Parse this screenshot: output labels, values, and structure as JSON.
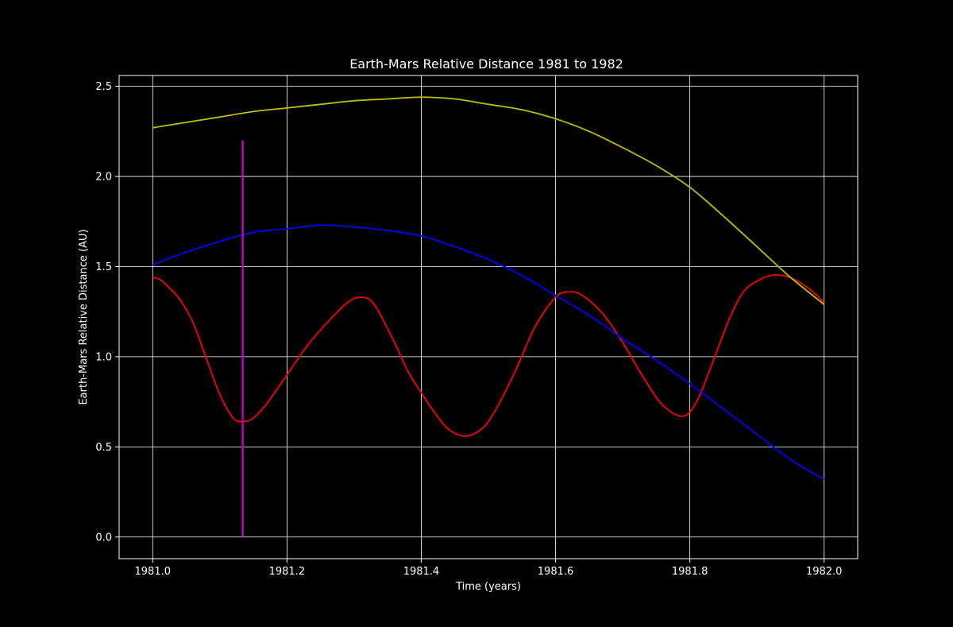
{
  "colors": {
    "background": "#000000",
    "foreground": "#ffffff",
    "grid": "#ffffff",
    "red_series": "#ff0000",
    "blue_series": "#0000ff",
    "yellow_series": "#bfbf00",
    "marker": "#bf00bf"
  },
  "chart_data": {
    "type": "line",
    "title": "Earth-Mars Relative Distance 1981 to 1982",
    "xlabel": "Time (years)",
    "ylabel": "Earth-Mars Relative Distance (AU)",
    "xlim": [
      1980.95,
      1982.05
    ],
    "ylim": [
      -0.12,
      2.56
    ],
    "grid": true,
    "x_ticks": [
      1981.0,
      1981.2,
      1981.4,
      1981.6,
      1981.8,
      1982.0
    ],
    "x_tick_labels": [
      "1981.0",
      "1981.2",
      "1981.4",
      "1981.6",
      "1981.8",
      "1982.0"
    ],
    "y_ticks": [
      0.0,
      0.5,
      1.0,
      1.5,
      2.0,
      2.5
    ],
    "y_tick_labels": [
      "0.0",
      "0.5",
      "1.0",
      "1.5",
      "2.0",
      "2.5"
    ],
    "series": [
      {
        "color": "#ff0000",
        "x": [
          1981.0,
          1981.01,
          1981.02,
          1981.04,
          1981.06,
          1981.08,
          1981.1,
          1981.12,
          1981.135,
          1981.15,
          1981.17,
          1981.2,
          1981.23,
          1981.26,
          1981.29,
          1981.31,
          1981.33,
          1981.36,
          1981.38,
          1981.4,
          1981.42,
          1981.44,
          1981.465,
          1981.49,
          1981.51,
          1981.54,
          1981.57,
          1981.6,
          1981.62,
          1981.64,
          1981.67,
          1981.7,
          1981.73,
          1981.76,
          1981.79,
          1981.81,
          1981.83,
          1981.86,
          1981.88,
          1981.9,
          1981.92,
          1981.94,
          1981.96,
          1981.98,
          1982.0
        ],
        "y": [
          1.44,
          1.43,
          1.4,
          1.32,
          1.19,
          0.99,
          0.79,
          0.66,
          0.64,
          0.66,
          0.74,
          0.9,
          1.06,
          1.19,
          1.3,
          1.33,
          1.29,
          1.08,
          0.92,
          0.8,
          0.69,
          0.6,
          0.56,
          0.6,
          0.7,
          0.92,
          1.17,
          1.33,
          1.36,
          1.34,
          1.24,
          1.08,
          0.89,
          0.73,
          0.67,
          0.75,
          0.93,
          1.22,
          1.36,
          1.42,
          1.45,
          1.45,
          1.42,
          1.37,
          1.3
        ]
      },
      {
        "color": "#0000ff",
        "x": [
          1981.0,
          1981.05,
          1981.1,
          1981.15,
          1981.2,
          1981.25,
          1981.3,
          1981.35,
          1981.4,
          1981.45,
          1981.5,
          1981.55,
          1981.6,
          1981.65,
          1981.7,
          1981.75,
          1981.8,
          1981.85,
          1981.9,
          1981.95,
          1982.0
        ],
        "y": [
          1.51,
          1.58,
          1.64,
          1.69,
          1.71,
          1.73,
          1.72,
          1.7,
          1.67,
          1.61,
          1.54,
          1.45,
          1.34,
          1.23,
          1.1,
          0.98,
          0.85,
          0.71,
          0.57,
          0.43,
          0.32
        ]
      },
      {
        "color": "#bfbf00",
        "x": [
          1981.0,
          1981.05,
          1981.1,
          1981.15,
          1981.2,
          1981.25,
          1981.3,
          1981.35,
          1981.4,
          1981.45,
          1981.5,
          1981.55,
          1981.6,
          1981.65,
          1981.7,
          1981.75,
          1981.8,
          1981.85,
          1981.9,
          1981.95,
          1982.0
        ],
        "y": [
          2.27,
          2.3,
          2.33,
          2.36,
          2.38,
          2.4,
          2.42,
          2.43,
          2.44,
          2.43,
          2.4,
          2.37,
          2.32,
          2.25,
          2.16,
          2.06,
          1.94,
          1.78,
          1.61,
          1.44,
          1.29
        ]
      }
    ],
    "vertical_marker": {
      "color": "#bf00bf",
      "x": 1981.134,
      "y_from": 0.0,
      "y_to": 2.2
    }
  }
}
